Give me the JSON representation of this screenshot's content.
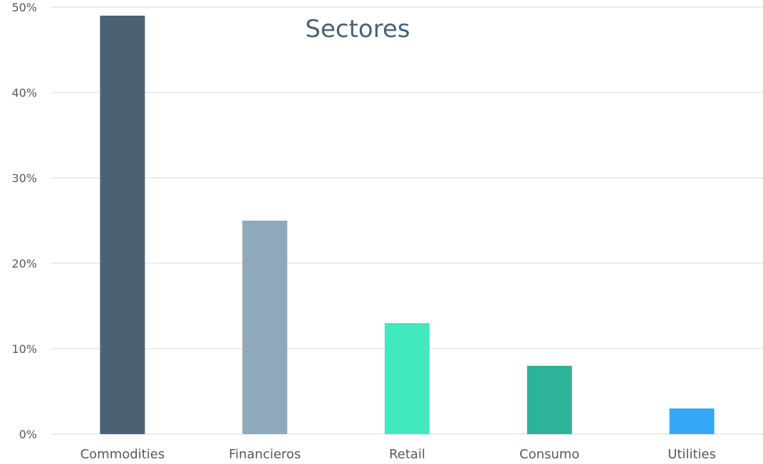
{
  "chart_data": {
    "type": "bar",
    "title": "Sectores",
    "categories": [
      "Commodities",
      "Financieros",
      "Retail",
      "Consumo",
      "Utilities"
    ],
    "values": [
      49,
      25,
      13,
      8,
      3
    ],
    "unit": "%",
    "colors": [
      "#4a6274",
      "#8fa8bc",
      "#42e8c0",
      "#2db39a",
      "#35a7f7"
    ],
    "ylim": [
      0,
      50
    ],
    "yticks": [
      "0%",
      "10%",
      "20%",
      "30%",
      "40%",
      "50%"
    ],
    "grid": true,
    "legend": "none",
    "xlabel": "",
    "ylabel": ""
  }
}
